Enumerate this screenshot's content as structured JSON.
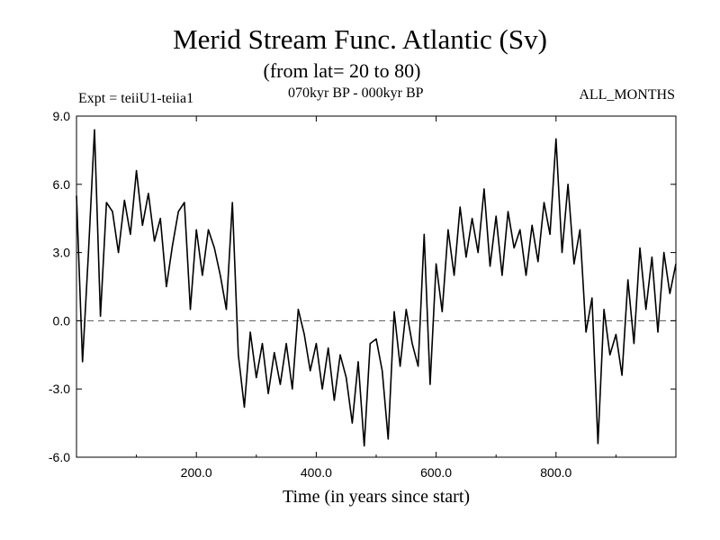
{
  "header": {
    "title": "Merid Stream Func. Atlantic (Sv)",
    "subtitle": "(from lat= 20 to 80)",
    "expt": "Expt = teiiU1-teiia1",
    "period": "070kyr BP - 000kyr BP",
    "months": "ALL_MONTHS"
  },
  "chart_data": {
    "type": "line",
    "title": "Merid Stream Func. Atlantic (Sv)",
    "xlabel": "Time (in years since start)",
    "ylabel": "",
    "xlim": [
      0,
      1000
    ],
    "ylim": [
      -6,
      9
    ],
    "x_ticks": [
      200,
      400,
      600,
      800
    ],
    "x_tick_labels": [
      "200.0",
      "400.0",
      "600.0",
      "800.0"
    ],
    "y_ticks": [
      -6,
      -3,
      0,
      3,
      6,
      9
    ],
    "y_tick_labels": [
      "-6.0",
      "-3.0",
      "0.0",
      "3.0",
      "6.0",
      "9.0"
    ],
    "reference_line": {
      "y": 0,
      "style": "dashed"
    },
    "grid": false,
    "line_color": "#000000",
    "series": [
      {
        "x": [
          0,
          10,
          20,
          30,
          40,
          50,
          60,
          70,
          80,
          90,
          100,
          110,
          120,
          130,
          140,
          150,
          160,
          170,
          180,
          190,
          200,
          210,
          220,
          230,
          240,
          250,
          260,
          270,
          280,
          290,
          300,
          310,
          320,
          330,
          340,
          350,
          360,
          370,
          380,
          390,
          400,
          410,
          420,
          430,
          440,
          450,
          460,
          470,
          480,
          490,
          500,
          510,
          520,
          530,
          540,
          550,
          560,
          570,
          580,
          590,
          600,
          610,
          620,
          630,
          640,
          650,
          660,
          670,
          680,
          690,
          700,
          710,
          720,
          730,
          740,
          750,
          760,
          770,
          780,
          790,
          800,
          810,
          820,
          830,
          840,
          850,
          860,
          870,
          880,
          890,
          900,
          910,
          920,
          930,
          940,
          950,
          960,
          970,
          980,
          990,
          1000
        ],
        "values": [
          5.5,
          -1.8,
          3.0,
          8.4,
          0.2,
          5.2,
          4.8,
          3.0,
          5.3,
          3.8,
          6.6,
          4.2,
          5.6,
          3.5,
          4.5,
          1.5,
          3.3,
          4.8,
          5.2,
          0.5,
          4.0,
          2.0,
          4.0,
          3.2,
          2.0,
          0.5,
          5.2,
          -1.5,
          -3.8,
          -0.5,
          -2.5,
          -1.0,
          -3.2,
          -1.4,
          -2.8,
          -1.0,
          -3.0,
          0.5,
          -0.6,
          -2.2,
          -1.0,
          -3.0,
          -1.2,
          -3.5,
          -1.5,
          -2.5,
          -4.5,
          -1.8,
          -5.5,
          -1.0,
          -0.8,
          -2.2,
          -5.2,
          0.4,
          -2.0,
          0.5,
          -1.0,
          -2.0,
          3.8,
          -2.8,
          2.5,
          0.4,
          4.0,
          2.0,
          5.0,
          2.8,
          4.5,
          3.0,
          5.8,
          2.4,
          4.6,
          2.0,
          4.8,
          3.2,
          4.0,
          2.0,
          4.2,
          2.6,
          5.2,
          3.8,
          8.0,
          3.0,
          6.0,
          2.5,
          4.0,
          -0.5,
          1.0,
          -5.4,
          0.5,
          -1.5,
          -0.6,
          -2.4,
          1.8,
          -1.0,
          3.2,
          0.5,
          2.8,
          -0.5,
          3.0,
          1.2,
          2.5
        ]
      }
    ]
  }
}
